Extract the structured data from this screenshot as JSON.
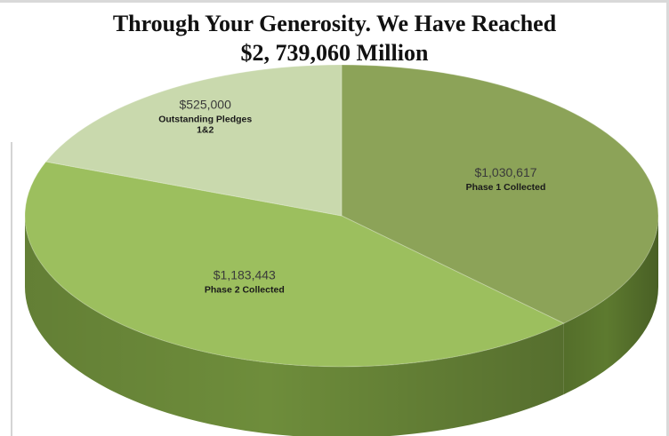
{
  "title_line1": "Through Your Generosity. We Have Reached",
  "title_line2": "$2, 739,060 Million",
  "chart_data": {
    "type": "pie",
    "title": "Through Your Generosity. We Have Reached $2, 739,060 Million",
    "three_d": true,
    "slices": [
      {
        "value": 1030617,
        "value_label": "$1,030,617",
        "name_lines": [
          "Phase 1 Collected"
        ],
        "color": "#8ca358",
        "side_color": "#5d7a2f"
      },
      {
        "value": 1183443,
        "value_label": "$1,183,443",
        "name_lines": [
          "Phase 2 Collected"
        ],
        "color": "#9cbf5e",
        "side_color": "#6e8d3b"
      },
      {
        "value": 525000,
        "value_label": "$525,000",
        "name_lines": [
          "Outstanding Pledges",
          "1&2"
        ],
        "color": "#c9d9ad",
        "side_color": "#9aab7e"
      }
    ]
  }
}
